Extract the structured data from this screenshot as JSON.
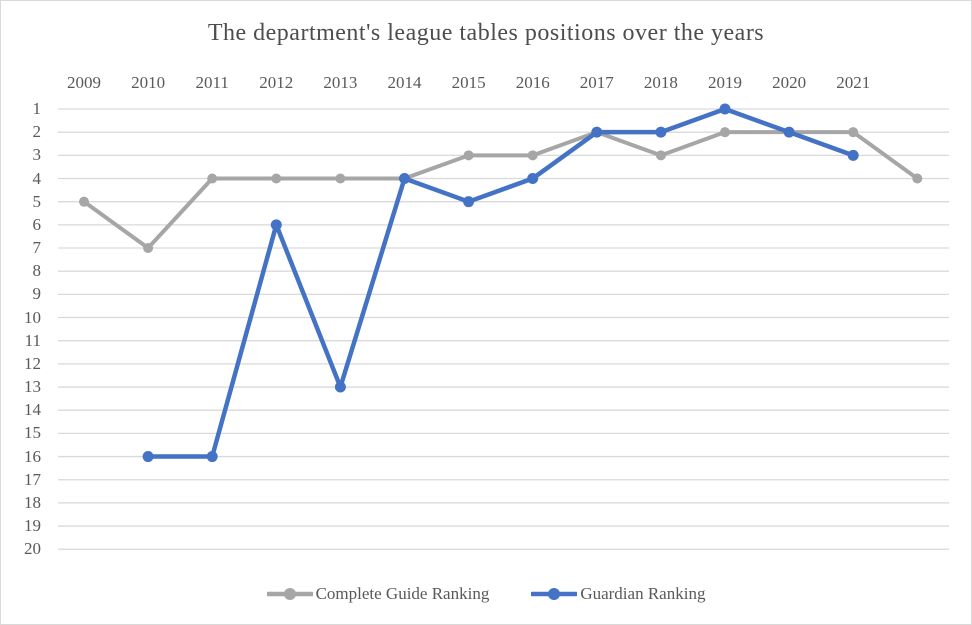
{
  "chart_data": {
    "type": "line",
    "title": "The department's league tables positions over the years",
    "categories": [
      "2009",
      "2010",
      "2011",
      "2012",
      "2013",
      "2014",
      "2015",
      "2016",
      "2017",
      "2018",
      "2019",
      "2020",
      "2021",
      ""
    ],
    "series": [
      {
        "name": "Complete Guide Ranking",
        "color": "#a6a6a6",
        "line_width": 4,
        "marker_radius": 5,
        "values": [
          5,
          7,
          4,
          4,
          4,
          4,
          3,
          3,
          2,
          3,
          2,
          2,
          2,
          4
        ]
      },
      {
        "name": "Guardian Ranking",
        "color": "#4472c4",
        "line_width": 4.5,
        "marker_radius": 5.5,
        "values": [
          null,
          16,
          16,
          6,
          13,
          4,
          5,
          4,
          2,
          2,
          1,
          2,
          3,
          null
        ]
      }
    ],
    "y_axis": {
      "ticks": [
        1,
        2,
        3,
        4,
        5,
        6,
        7,
        8,
        9,
        10,
        11,
        12,
        13,
        14,
        15,
        16,
        17,
        18,
        19,
        20
      ],
      "min": 1,
      "max": 20,
      "inverted": true
    },
    "x_axis_position": "top",
    "grid": true,
    "gridline_color": "#d9d9d9",
    "legend_position": "bottom",
    "text_color": "#595959",
    "title_color": "#4d4d4d"
  }
}
